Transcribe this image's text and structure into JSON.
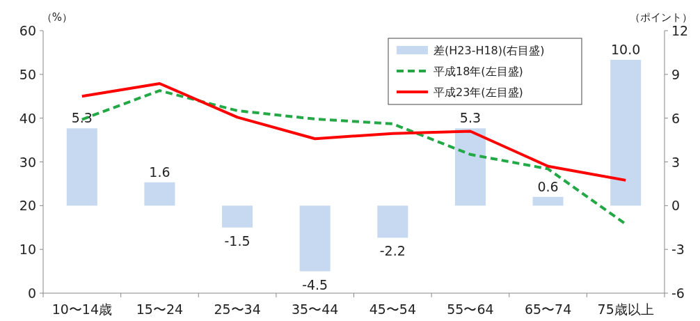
{
  "chart_data": {
    "type": "bar",
    "ylabel": "（%）",
    "y2label": "（ポイント）",
    "categories": [
      "10〜14歳",
      "15〜24",
      "25〜34",
      "35〜44",
      "45〜54",
      "55〜64",
      "65〜74",
      "75歳以上"
    ],
    "series": [
      {
        "name": "差(H23-H18)(右目盛)",
        "axis": "y2",
        "color": "#c6d9f0",
        "values": [
          5.3,
          1.6,
          -1.5,
          -4.5,
          -2.2,
          5.3,
          0.6,
          10.0
        ],
        "value_labels": [
          "5.3",
          "1.6",
          "-1.5",
          "-4.5",
          "-2.2",
          "5.3",
          "0.6",
          "10.0"
        ]
      },
      {
        "name": "平成18年(左目盛)",
        "type": "line",
        "color": "#22a845",
        "line_style": "dashed",
        "values": [
          39.7,
          46.3,
          41.7,
          39.8,
          38.7,
          31.7,
          28.4,
          15.8
        ]
      },
      {
        "name": "平成23年(左目盛)",
        "type": "line",
        "color": "#ff0000",
        "line_style": "solid",
        "values": [
          45.0,
          47.9,
          40.2,
          35.3,
          36.5,
          37.0,
          29.0,
          25.8
        ]
      }
    ],
    "ylim": [
      0,
      60
    ],
    "yticks": [
      0,
      10,
      20,
      30,
      40,
      50,
      60
    ],
    "y2lim": [
      -6,
      12
    ],
    "y2ticks": [
      -6,
      -3,
      0,
      3,
      6,
      9,
      12
    ],
    "legend": "top right",
    "grid": false
  }
}
